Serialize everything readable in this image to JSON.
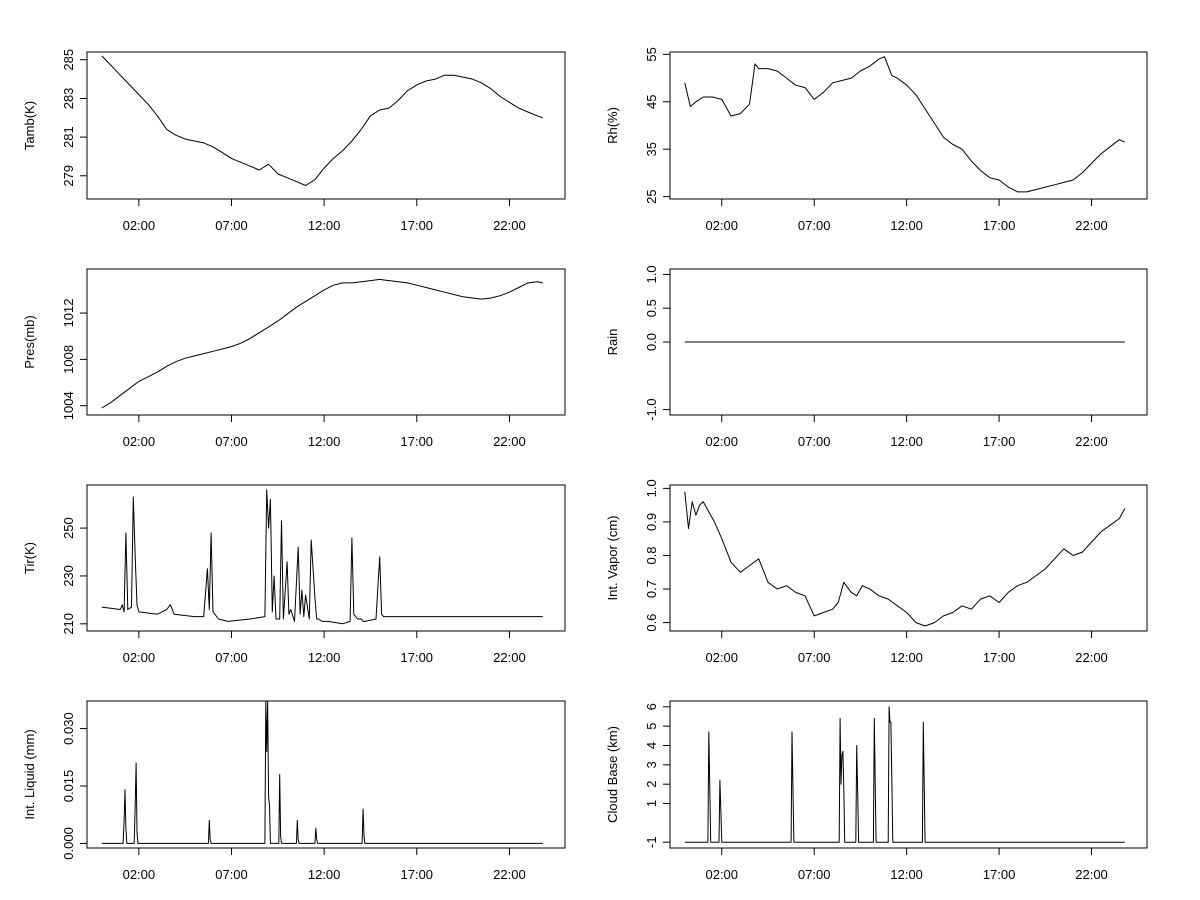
{
  "x_ticks": [
    "02:00",
    "07:00",
    "12:00",
    "17:00",
    "22:00"
  ],
  "chart_data": [
    {
      "id": "tamb",
      "type": "line",
      "ylabel": "Tamb(K)",
      "xlim": [
        -0.8,
        25.0
      ],
      "ylim": [
        277.8,
        285.4
      ],
      "yticks": [
        279,
        281,
        283,
        285
      ],
      "ytick_labels": [
        "279",
        "281",
        "283",
        "285"
      ],
      "x": [
        0.0,
        0.5,
        1.0,
        1.5,
        2.0,
        2.5,
        3.0,
        3.5,
        4.0,
        4.5,
        5.0,
        5.5,
        6.0,
        6.5,
        7.0,
        7.5,
        8.0,
        8.5,
        9.0,
        9.5,
        10.0,
        10.5,
        11.0,
        11.5,
        12.0,
        12.5,
        13.0,
        13.5,
        14.0,
        14.5,
        15.0,
        15.5,
        16.0,
        16.5,
        17.0,
        17.5,
        18.0,
        18.5,
        19.0,
        19.5,
        20.0,
        20.5,
        21.0,
        21.5,
        22.0,
        22.5,
        23.0,
        23.5,
        23.8
      ],
      "y": [
        285.2,
        284.7,
        284.2,
        283.7,
        283.2,
        282.7,
        282.1,
        281.4,
        281.1,
        280.9,
        280.8,
        280.7,
        280.5,
        280.2,
        279.9,
        279.7,
        279.5,
        279.3,
        279.6,
        279.1,
        278.9,
        278.7,
        278.5,
        278.8,
        279.4,
        279.9,
        280.3,
        280.8,
        281.4,
        282.1,
        282.4,
        282.5,
        282.9,
        283.4,
        283.7,
        283.9,
        284.0,
        284.2,
        284.2,
        284.1,
        284.0,
        283.8,
        283.5,
        283.1,
        282.8,
        282.5,
        282.3,
        282.1,
        282.0
      ]
    },
    {
      "id": "rh",
      "type": "line",
      "ylabel": "Rh(%)",
      "xlim": [
        -0.8,
        25.0
      ],
      "ylim": [
        24.5,
        55.5
      ],
      "yticks": [
        25,
        35,
        45,
        55
      ],
      "ytick_labels": [
        "25",
        "35",
        "45",
        "55"
      ],
      "x": [
        0.0,
        0.3,
        0.6,
        1.0,
        1.5,
        2.0,
        2.5,
        3.0,
        3.5,
        3.8,
        4.0,
        4.5,
        5.0,
        5.5,
        6.0,
        6.5,
        7.0,
        7.5,
        8.0,
        8.5,
        9.0,
        9.5,
        10.0,
        10.5,
        10.8,
        11.2,
        11.5,
        12.0,
        12.5,
        13.0,
        13.5,
        14.0,
        14.5,
        15.0,
        15.5,
        16.0,
        16.5,
        17.0,
        17.5,
        18.0,
        18.5,
        19.0,
        19.5,
        20.0,
        20.5,
        21.0,
        21.5,
        22.0,
        22.5,
        23.0,
        23.5,
        23.8
      ],
      "y": [
        49.0,
        44.0,
        45.0,
        46.0,
        46.0,
        45.5,
        42.0,
        42.5,
        44.5,
        53.0,
        52.0,
        52.0,
        51.5,
        50.0,
        48.5,
        48.0,
        45.5,
        47.0,
        49.0,
        49.5,
        50.0,
        51.5,
        52.5,
        54.0,
        54.5,
        50.5,
        50.0,
        48.5,
        46.5,
        43.5,
        40.5,
        37.5,
        36.0,
        35.0,
        32.5,
        30.5,
        29.0,
        28.5,
        27.0,
        26.0,
        26.0,
        26.5,
        27.0,
        27.5,
        28.0,
        28.5,
        30.0,
        32.0,
        34.0,
        35.5,
        37.0,
        36.5
      ]
    },
    {
      "id": "pres",
      "type": "line",
      "ylabel": "Pres(mb)",
      "xlim": [
        -0.8,
        25.0
      ],
      "ylim": [
        1003.2,
        1015.8
      ],
      "yticks": [
        1004,
        1008,
        1012
      ],
      "ytick_labels": [
        "1004",
        "1008",
        "1012"
      ],
      "x": [
        0.0,
        0.5,
        1.0,
        1.5,
        2.0,
        2.5,
        3.0,
        3.5,
        4.0,
        4.5,
        5.0,
        5.5,
        6.0,
        6.5,
        7.0,
        7.5,
        8.0,
        8.5,
        9.0,
        9.5,
        10.0,
        10.5,
        11.0,
        11.5,
        12.0,
        12.5,
        13.0,
        13.5,
        14.0,
        14.5,
        15.0,
        15.5,
        16.0,
        16.5,
        17.0,
        17.5,
        18.0,
        18.5,
        19.0,
        19.5,
        20.0,
        20.5,
        21.0,
        21.5,
        22.0,
        22.5,
        23.0,
        23.5,
        23.8
      ],
      "y": [
        1003.8,
        1004.3,
        1004.9,
        1005.5,
        1006.1,
        1006.5,
        1006.9,
        1007.4,
        1007.8,
        1008.1,
        1008.3,
        1008.5,
        1008.7,
        1008.9,
        1009.1,
        1009.4,
        1009.8,
        1010.3,
        1010.8,
        1011.3,
        1011.9,
        1012.5,
        1013.0,
        1013.5,
        1014.0,
        1014.4,
        1014.6,
        1014.6,
        1014.7,
        1014.8,
        1014.9,
        1014.8,
        1014.7,
        1014.6,
        1014.4,
        1014.2,
        1014.0,
        1013.8,
        1013.6,
        1013.4,
        1013.3,
        1013.2,
        1013.3,
        1013.5,
        1013.8,
        1014.2,
        1014.6,
        1014.7,
        1014.6
      ]
    },
    {
      "id": "rain",
      "type": "line",
      "ylabel": "Rain",
      "xlim": [
        -0.8,
        25.0
      ],
      "ylim": [
        -1.08,
        1.08
      ],
      "yticks": [
        -1.0,
        0.0,
        0.5,
        1.0
      ],
      "ytick_labels": [
        "-1.0",
        "0.0",
        "0.5",
        "1.0"
      ],
      "x": [
        0.0,
        23.8
      ],
      "y": [
        0.0,
        0.0
      ]
    },
    {
      "id": "tir",
      "type": "line",
      "ylabel": "Tir(K)",
      "xlim": [
        -0.8,
        25.0
      ],
      "ylim": [
        207.0,
        268.0
      ],
      "yticks": [
        210,
        230,
        250
      ],
      "ytick_labels": [
        "210",
        "230",
        "250"
      ],
      "x": [
        0.0,
        1.0,
        1.1,
        1.2,
        1.3,
        1.4,
        1.6,
        1.7,
        1.8,
        1.9,
        2.0,
        3.0,
        3.5,
        3.7,
        3.9,
        5.0,
        5.5,
        5.7,
        5.8,
        5.9,
        6.0,
        6.1,
        6.3,
        6.8,
        8.0,
        8.8,
        8.9,
        9.0,
        9.1,
        9.2,
        9.3,
        9.4,
        9.6,
        9.7,
        9.8,
        10.0,
        10.1,
        10.2,
        10.4,
        10.6,
        10.7,
        10.8,
        10.9,
        11.0,
        11.2,
        11.3,
        11.5,
        11.6,
        11.7,
        11.9,
        12.0,
        12.2,
        13.0,
        13.4,
        13.5,
        13.6,
        13.8,
        14.0,
        14.1,
        14.2,
        14.8,
        15.0,
        15.1,
        15.2,
        16.0,
        18.0,
        20.0,
        22.0,
        23.8
      ],
      "y": [
        217.0,
        216.0,
        218.0,
        215.0,
        248.0,
        216.0,
        217.0,
        263.0,
        238.0,
        218.0,
        215.0,
        214.0,
        216.0,
        218.0,
        214.0,
        213.0,
        213.0,
        233.0,
        216.0,
        248.0,
        215.0,
        214.0,
        212.0,
        211.0,
        212.0,
        213.0,
        266.0,
        250.0,
        262.0,
        215.0,
        230.0,
        212.0,
        212.0,
        253.0,
        212.0,
        236.0,
        214.0,
        216.0,
        211.0,
        242.0,
        214.0,
        224.0,
        213.0,
        222.0,
        212.0,
        245.0,
        221.0,
        212.0,
        212.0,
        211.0,
        211.0,
        211.0,
        210.0,
        211.0,
        246.0,
        214.0,
        212.0,
        212.0,
        211.0,
        211.0,
        212.0,
        238.0,
        214.0,
        213.0,
        213.0,
        213.0,
        213.0,
        213.0,
        213.0
      ]
    },
    {
      "id": "vapor",
      "type": "line",
      "ylabel": "Int. Vapor (cm)",
      "xlim": [
        -0.8,
        25.0
      ],
      "ylim": [
        0.575,
        1.01
      ],
      "yticks": [
        0.6,
        0.7,
        0.8,
        0.9,
        1.0
      ],
      "ytick_labels": [
        "0.6",
        "0.7",
        "0.8",
        "0.9",
        "1.0"
      ],
      "x": [
        0.0,
        0.2,
        0.4,
        0.6,
        0.8,
        1.0,
        1.3,
        1.6,
        2.0,
        2.5,
        3.0,
        3.5,
        4.0,
        4.5,
        5.0,
        5.5,
        6.0,
        6.5,
        7.0,
        7.5,
        8.0,
        8.3,
        8.6,
        9.0,
        9.3,
        9.6,
        10.0,
        10.5,
        11.0,
        11.5,
        12.0,
        12.5,
        13.0,
        13.5,
        14.0,
        14.5,
        15.0,
        15.5,
        16.0,
        16.5,
        17.0,
        17.5,
        18.0,
        18.5,
        19.0,
        19.5,
        20.0,
        20.5,
        21.0,
        21.5,
        22.0,
        22.5,
        23.0,
        23.5,
        23.8
      ],
      "y": [
        0.99,
        0.88,
        0.96,
        0.92,
        0.95,
        0.96,
        0.93,
        0.9,
        0.85,
        0.78,
        0.75,
        0.77,
        0.79,
        0.72,
        0.7,
        0.71,
        0.69,
        0.68,
        0.62,
        0.63,
        0.64,
        0.66,
        0.72,
        0.69,
        0.68,
        0.71,
        0.7,
        0.68,
        0.67,
        0.65,
        0.63,
        0.6,
        0.59,
        0.6,
        0.62,
        0.63,
        0.65,
        0.64,
        0.67,
        0.68,
        0.66,
        0.69,
        0.71,
        0.72,
        0.74,
        0.76,
        0.79,
        0.82,
        0.8,
        0.81,
        0.84,
        0.87,
        0.89,
        0.91,
        0.94
      ]
    },
    {
      "id": "liquid",
      "type": "line",
      "ylabel": "Int. Liquid (mm)",
      "xlim": [
        -0.8,
        25.0
      ],
      "ylim": [
        -0.0012,
        0.0372
      ],
      "yticks": [
        0.0,
        0.015,
        0.03
      ],
      "ytick_labels": [
        "0.000",
        "0.015",
        "0.030"
      ],
      "x": [
        0.0,
        1.15,
        1.2,
        1.25,
        1.3,
        1.35,
        1.4,
        1.75,
        1.8,
        1.85,
        1.9,
        1.95,
        5.75,
        5.8,
        5.85,
        5.9,
        8.8,
        8.85,
        8.9,
        8.95,
        9.0,
        9.05,
        9.1,
        9.15,
        9.2,
        9.55,
        9.6,
        9.65,
        9.7,
        10.5,
        10.55,
        10.6,
        10.65,
        11.5,
        11.55,
        11.6,
        11.65,
        14.05,
        14.1,
        14.15,
        14.2,
        23.8
      ],
      "y": [
        0.0,
        0.0,
        0.006,
        0.014,
        0.004,
        0.0,
        0.0,
        0.0,
        0.01,
        0.021,
        0.003,
        0.0,
        0.0,
        0.006,
        0.001,
        0.0,
        0.0,
        0.037,
        0.024,
        0.037,
        0.012,
        0.01,
        0.0,
        0.0,
        0.0,
        0.0,
        0.018,
        0.002,
        0.0,
        0.0,
        0.006,
        0.001,
        0.0,
        0.0,
        0.004,
        0.001,
        0.0,
        0.0,
        0.009,
        0.002,
        0.0,
        0.0
      ]
    },
    {
      "id": "cloud",
      "type": "line",
      "ylabel": "Cloud Base (km)",
      "xlim": [
        -0.8,
        25.0
      ],
      "ylim": [
        -1.3,
        6.3
      ],
      "yticks": [
        -1,
        1,
        2,
        3,
        4,
        5,
        6
      ],
      "ytick_labels": [
        "-1",
        "1",
        "2",
        "3",
        "4",
        "5",
        "6"
      ],
      "x": [
        0.0,
        1.25,
        1.3,
        1.35,
        1.4,
        1.85,
        1.9,
        1.95,
        2.0,
        5.75,
        5.8,
        5.85,
        5.9,
        8.35,
        8.4,
        8.45,
        8.5,
        8.55,
        8.6,
        8.65,
        8.7,
        9.25,
        9.3,
        9.35,
        9.4,
        10.2,
        10.25,
        10.3,
        10.35,
        11.0,
        11.05,
        11.1,
        11.15,
        11.2,
        11.25,
        12.85,
        12.9,
        12.95,
        13.0,
        23.8
      ],
      "y": [
        -1.0,
        -1.0,
        4.7,
        1.8,
        -1.0,
        -1.0,
        2.2,
        0.7,
        -1.0,
        -1.0,
        4.7,
        1.9,
        -1.0,
        -1.0,
        5.4,
        2.0,
        3.5,
        3.7,
        1.8,
        -1.0,
        -1.0,
        -1.0,
        4.0,
        1.5,
        -1.0,
        -1.0,
        5.4,
        2.1,
        -1.0,
        -1.0,
        6.0,
        5.2,
        5.2,
        2.0,
        -1.0,
        -1.0,
        5.2,
        2.0,
        -1.0,
        -1.0
      ]
    }
  ]
}
